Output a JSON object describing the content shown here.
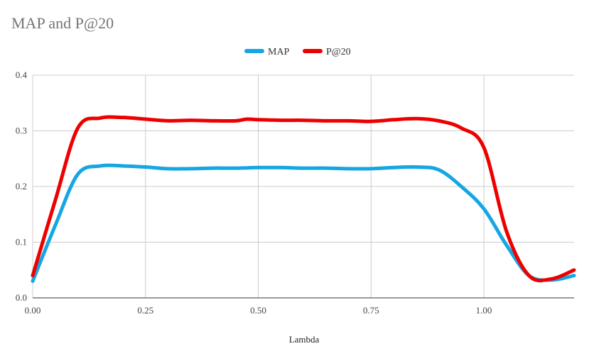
{
  "chart_data": {
    "type": "line",
    "title": "MAP and P@20",
    "xlabel": "Lambda",
    "ylabel": "",
    "xlim": [
      0,
      1.2
    ],
    "ylim": [
      0,
      0.4
    ],
    "x_ticks": [
      "0.00",
      "0.25",
      "0.50",
      "0.75",
      "1.00"
    ],
    "x_tick_values": [
      0,
      0.25,
      0.5,
      0.75,
      1.0
    ],
    "y_ticks": [
      "0.0",
      "0.1",
      "0.2",
      "0.3",
      "0.4"
    ],
    "y_tick_values": [
      0,
      0.1,
      0.2,
      0.3,
      0.4
    ],
    "grid": true,
    "legend_position": "top-center",
    "series": [
      {
        "name": "MAP",
        "color": "#16a6e2",
        "x": [
          0,
          0.05,
          0.1,
          0.15,
          0.2,
          0.25,
          0.3,
          0.35,
          0.4,
          0.45,
          0.5,
          0.55,
          0.6,
          0.65,
          0.7,
          0.75,
          0.8,
          0.85,
          0.9,
          0.95,
          1.0,
          1.05,
          1.1,
          1.15,
          1.2
        ],
        "values": [
          0.03,
          0.13,
          0.222,
          0.237,
          0.237,
          0.235,
          0.232,
          0.232,
          0.233,
          0.233,
          0.234,
          0.234,
          0.233,
          0.233,
          0.232,
          0.232,
          0.234,
          0.235,
          0.23,
          0.2,
          0.16,
          0.095,
          0.04,
          0.032,
          0.04
        ]
      },
      {
        "name": "P@20",
        "color": "#ee0000",
        "x": [
          0,
          0.05,
          0.1,
          0.15,
          0.2,
          0.25,
          0.3,
          0.35,
          0.4,
          0.45,
          0.475,
          0.5,
          0.55,
          0.6,
          0.65,
          0.7,
          0.75,
          0.8,
          0.85,
          0.9,
          0.95,
          1.0,
          1.05,
          1.1,
          1.15,
          1.2
        ],
        "values": [
          0.04,
          0.175,
          0.305,
          0.323,
          0.324,
          0.321,
          0.318,
          0.319,
          0.318,
          0.318,
          0.321,
          0.32,
          0.319,
          0.319,
          0.318,
          0.318,
          0.317,
          0.32,
          0.322,
          0.318,
          0.305,
          0.27,
          0.12,
          0.04,
          0.034,
          0.05
        ]
      }
    ]
  }
}
